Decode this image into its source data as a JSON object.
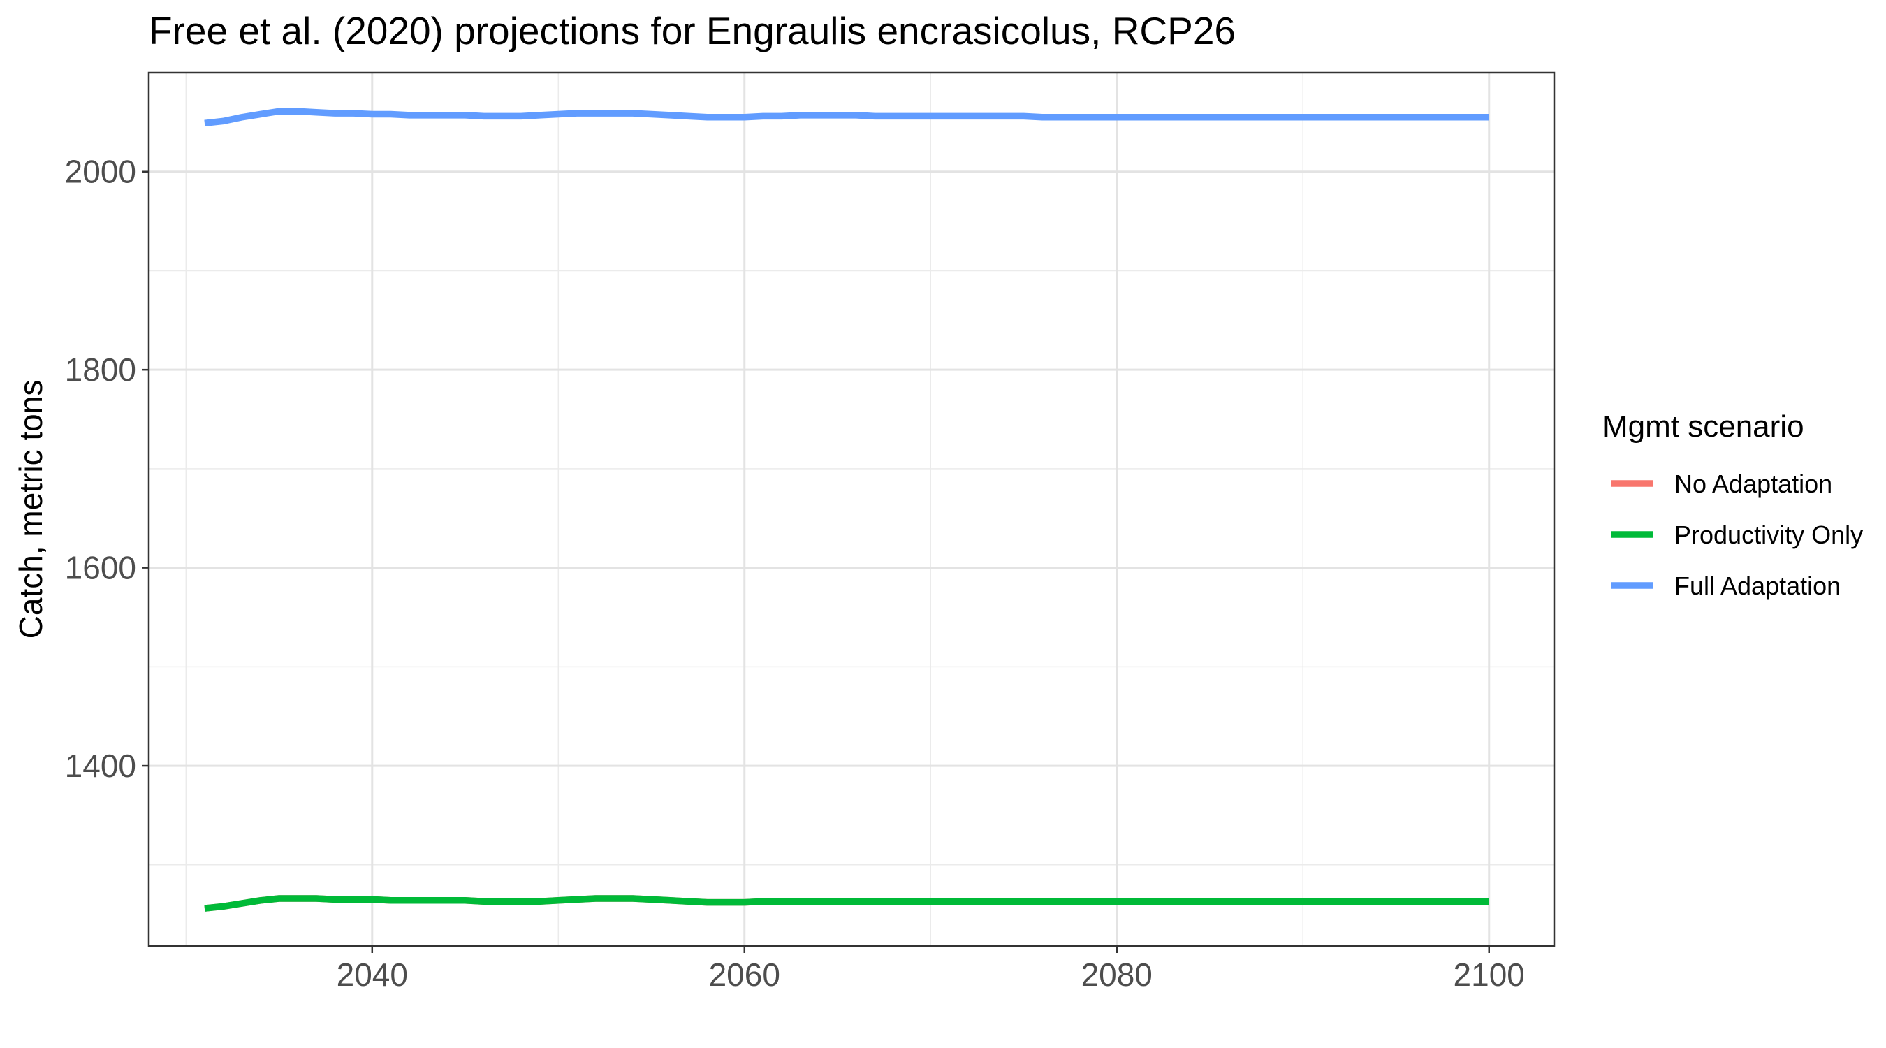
{
  "chart_data": {
    "type": "line",
    "title": "Free et al. (2020) projections for Engraulis encrasicolus, RCP26",
    "xlabel": "",
    "ylabel": "Catch, metric tons",
    "xlim": [
      2028,
      2103.5
    ],
    "ylim": [
      1218,
      2100
    ],
    "x_ticks": [
      2040,
      2060,
      2080,
      2100
    ],
    "y_ticks": [
      1400,
      1600,
      1800,
      2000
    ],
    "x_minor": [
      2030,
      2050,
      2070,
      2090
    ],
    "y_minor": [
      1300,
      1500,
      1700,
      1900
    ],
    "grid": true,
    "legend": {
      "title": "Mgmt scenario",
      "position": "right",
      "entries": [
        "No Adaptation",
        "Productivity Only",
        "Full Adaptation"
      ]
    },
    "x": [
      2031,
      2032,
      2033,
      2034,
      2035,
      2036,
      2037,
      2038,
      2039,
      2040,
      2041,
      2042,
      2043,
      2044,
      2045,
      2046,
      2047,
      2048,
      2049,
      2050,
      2051,
      2052,
      2053,
      2054,
      2055,
      2056,
      2057,
      2058,
      2059,
      2060,
      2061,
      2062,
      2063,
      2064,
      2065,
      2066,
      2067,
      2068,
      2069,
      2070,
      2071,
      2072,
      2073,
      2074,
      2075,
      2076,
      2077,
      2078,
      2079,
      2080,
      2081,
      2082,
      2083,
      2084,
      2085,
      2086,
      2087,
      2088,
      2089,
      2090,
      2091,
      2092,
      2093,
      2094,
      2095,
      2096,
      2097,
      2098,
      2099,
      2100
    ],
    "series": [
      {
        "name": "No Adaptation",
        "color": "#f8766d",
        "values": [
          1256,
          1258,
          1261,
          1264,
          1266,
          1266,
          1266,
          1265,
          1265,
          1265,
          1264,
          1264,
          1264,
          1264,
          1264,
          1263,
          1263,
          1263,
          1263,
          1264,
          1265,
          1266,
          1266,
          1266,
          1265,
          1264,
          1263,
          1262,
          1262,
          1262,
          1263,
          1263,
          1263,
          1263,
          1263,
          1263,
          1263,
          1263,
          1263,
          1263,
          1263,
          1263,
          1263,
          1263,
          1263,
          1263,
          1263,
          1263,
          1263,
          1263,
          1263,
          1263,
          1263,
          1263,
          1263,
          1263,
          1263,
          1263,
          1263,
          1263,
          1263,
          1263,
          1263,
          1263,
          1263,
          1263,
          1263,
          1263,
          1263,
          1263
        ]
      },
      {
        "name": "Productivity Only",
        "color": "#00ba38",
        "values": [
          1256,
          1258,
          1261,
          1264,
          1266,
          1266,
          1266,
          1265,
          1265,
          1265,
          1264,
          1264,
          1264,
          1264,
          1264,
          1263,
          1263,
          1263,
          1263,
          1264,
          1265,
          1266,
          1266,
          1266,
          1265,
          1264,
          1263,
          1262,
          1262,
          1262,
          1263,
          1263,
          1263,
          1263,
          1263,
          1263,
          1263,
          1263,
          1263,
          1263,
          1263,
          1263,
          1263,
          1263,
          1263,
          1263,
          1263,
          1263,
          1263,
          1263,
          1263,
          1263,
          1263,
          1263,
          1263,
          1263,
          1263,
          1263,
          1263,
          1263,
          1263,
          1263,
          1263,
          1263,
          1263,
          1263,
          1263,
          1263,
          1263,
          1263
        ]
      },
      {
        "name": "Full Adaptation",
        "color": "#619cff",
        "values": [
          2049,
          2051,
          2055,
          2058,
          2061,
          2061,
          2060,
          2059,
          2059,
          2058,
          2058,
          2057,
          2057,
          2057,
          2057,
          2056,
          2056,
          2056,
          2057,
          2058,
          2059,
          2059,
          2059,
          2059,
          2058,
          2057,
          2056,
          2055,
          2055,
          2055,
          2056,
          2056,
          2057,
          2057,
          2057,
          2057,
          2056,
          2056,
          2056,
          2056,
          2056,
          2056,
          2056,
          2056,
          2056,
          2055,
          2055,
          2055,
          2055,
          2055,
          2055,
          2055,
          2055,
          2055,
          2055,
          2055,
          2055,
          2055,
          2055,
          2055,
          2055,
          2055,
          2055,
          2055,
          2055,
          2055,
          2055,
          2055,
          2055,
          2055
        ]
      }
    ]
  }
}
